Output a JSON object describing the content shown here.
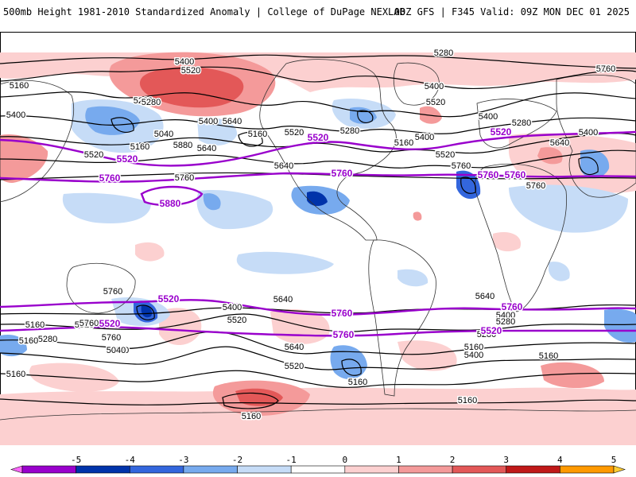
{
  "header": {
    "title": "500mb Height 1981-2010 Standardized Anomaly | College of DuPage NEXLAB",
    "run_info": "00Z GFS | F345 Valid: 09Z MON DEC 01 2025"
  },
  "map": {
    "black_contour_labels": [
      "5400",
      "5520",
      "5280",
      "5160",
      "5400",
      "5280",
      "5040",
      "5400",
      "5640",
      "5160",
      "5520",
      "5160",
      "5520",
      "5640",
      "5280",
      "5400",
      "5520",
      "5280",
      "5400",
      "5160",
      "5520",
      "5640",
      "5760",
      "5880",
      "5760",
      "5400",
      "5280",
      "5400",
      "5640",
      "5760",
      "5760",
      "5760",
      "5640",
      "5400",
      "5640",
      "5520",
      "5400",
      "5280",
      "5160",
      "5520",
      "5760",
      "5760",
      "5640",
      "5520",
      "5400",
      "5280",
      "5160",
      "5400",
      "5280",
      "5160",
      "5040",
      "5160",
      "5160",
      "5160",
      "5160",
      "5160"
    ],
    "purple_contour_labels": [
      "5520",
      "5760",
      "5880",
      "5520",
      "5760",
      "5520",
      "5760",
      "5760",
      "5760",
      "5520",
      "5760",
      "5520",
      "5520",
      "5760"
    ]
  },
  "colorbar": {
    "ticks": [
      "-5",
      "-4",
      "-3",
      "-2",
      "-1",
      "0",
      "1",
      "2",
      "3",
      "4",
      "5"
    ],
    "colors": [
      "#ff66ff",
      "#9900cc",
      "#0033aa",
      "#3366dd",
      "#77aaee",
      "#c6dcf7",
      "#ffffff",
      "#fcd0d0",
      "#f49a9a",
      "#e35858",
      "#c01818",
      "#ff9900",
      "#ffcc33"
    ]
  }
}
